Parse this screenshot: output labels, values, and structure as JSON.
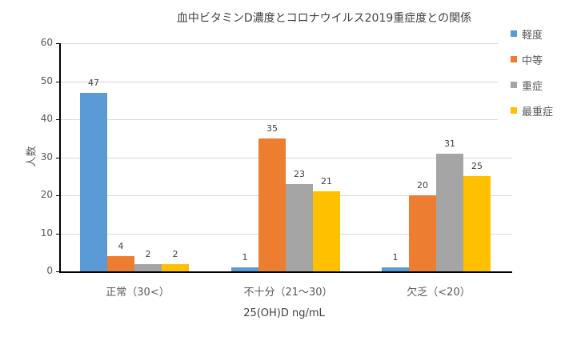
{
  "chart_data": {
    "type": "bar",
    "title": "血中ビタミンD濃度とコロナウイルス2019重症度との関係",
    "xlabel": "25(OH)D ng/mL",
    "ylabel": "人数",
    "ylim": [
      0,
      60
    ],
    "yticks": [
      "0",
      "10",
      "20",
      "30",
      "40",
      "50",
      "60"
    ],
    "grid": true,
    "legend_position": "right",
    "categories": [
      "正常（30<）",
      "不十分（21～30）",
      "欠乏（<20）"
    ],
    "series": [
      {
        "name": "軽度",
        "color": "#5B9BD5",
        "values": [
          47,
          1,
          1
        ]
      },
      {
        "name": "中等",
        "color": "#ED7D31",
        "values": [
          4,
          35,
          20
        ]
      },
      {
        "name": "重症",
        "color": "#A5A5A5",
        "values": [
          2,
          23,
          31
        ]
      },
      {
        "name": "最重症",
        "color": "#FFC000",
        "values": [
          2,
          21,
          25
        ]
      }
    ]
  }
}
